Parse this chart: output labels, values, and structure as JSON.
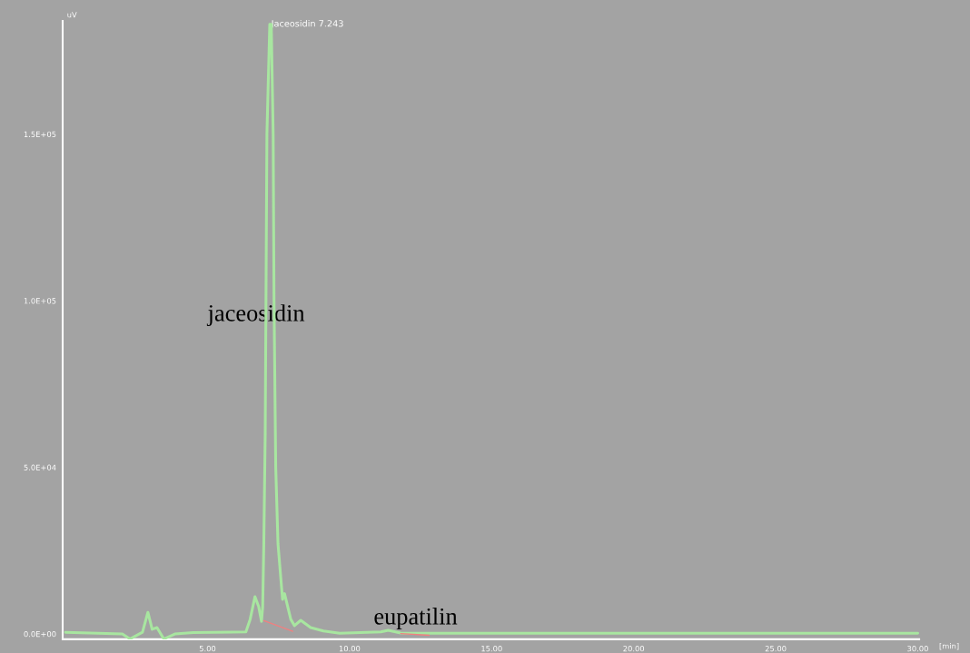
{
  "chart_data": {
    "type": "line",
    "ylabel": "uV",
    "xlabel": "[min]",
    "xlim": [
      -0.1,
      30.05
    ],
    "ylim": [
      -1600,
      184000
    ],
    "xticks": [
      {
        "value": 5,
        "label": "5.00"
      },
      {
        "value": 10,
        "label": "10.00"
      },
      {
        "value": 15,
        "label": "15.00"
      },
      {
        "value": 20,
        "label": "20.00"
      },
      {
        "value": 25,
        "label": "25.00"
      },
      {
        "value": 30,
        "label": "30.00"
      }
    ],
    "yticks": [
      {
        "value": 0,
        "label": "0.0E+00"
      },
      {
        "value": 50000,
        "label": "5.0E+04"
      },
      {
        "value": 100000,
        "label": "1.0E+05"
      },
      {
        "value": 150000,
        "label": "1.5E+05"
      }
    ],
    "grid": false,
    "marker": "none",
    "line_style": "solid",
    "series": [
      {
        "color": "#a8e6a0",
        "x": [
          0,
          2.0,
          2.27,
          2.71,
          2.9,
          3.05,
          3.22,
          3.46,
          3.85,
          4.5,
          6.35,
          6.5,
          6.67,
          6.8,
          6.9,
          6.94,
          6.98,
          7.03,
          7.09,
          7.19,
          7.243,
          7.31,
          7.34,
          7.4,
          7.48,
          7.64,
          7.71,
          7.93,
          8.06,
          8.28,
          8.63,
          9.08,
          9.65,
          11.1,
          11.36,
          11.8,
          12.5,
          20,
          30
        ],
        "values": [
          500,
          0,
          -1500,
          500,
          6500,
          1400,
          1900,
          -1500,
          0,
          400,
          600,
          4400,
          11200,
          8200,
          3800,
          8000,
          26700,
          60000,
          150000,
          183000,
          183000,
          150000,
          100000,
          50000,
          27000,
          10400,
          12100,
          4400,
          2500,
          4100,
          1900,
          900,
          200,
          600,
          1100,
          300,
          200,
          200,
          200
        ]
      },
      {
        "color": "#f08080",
        "x": [
          6.98,
          8.0
        ],
        "values": [
          4000,
          800
        ]
      },
      {
        "color": "#f08080",
        "x": [
          11.8,
          12.8
        ],
        "values": [
          100,
          -400
        ]
      }
    ],
    "annotations": [
      {
        "text": "Jaceosidin 7.243",
        "x": 7.243,
        "y": 183000
      },
      "jaceosidin",
      "eupatilin"
    ]
  }
}
